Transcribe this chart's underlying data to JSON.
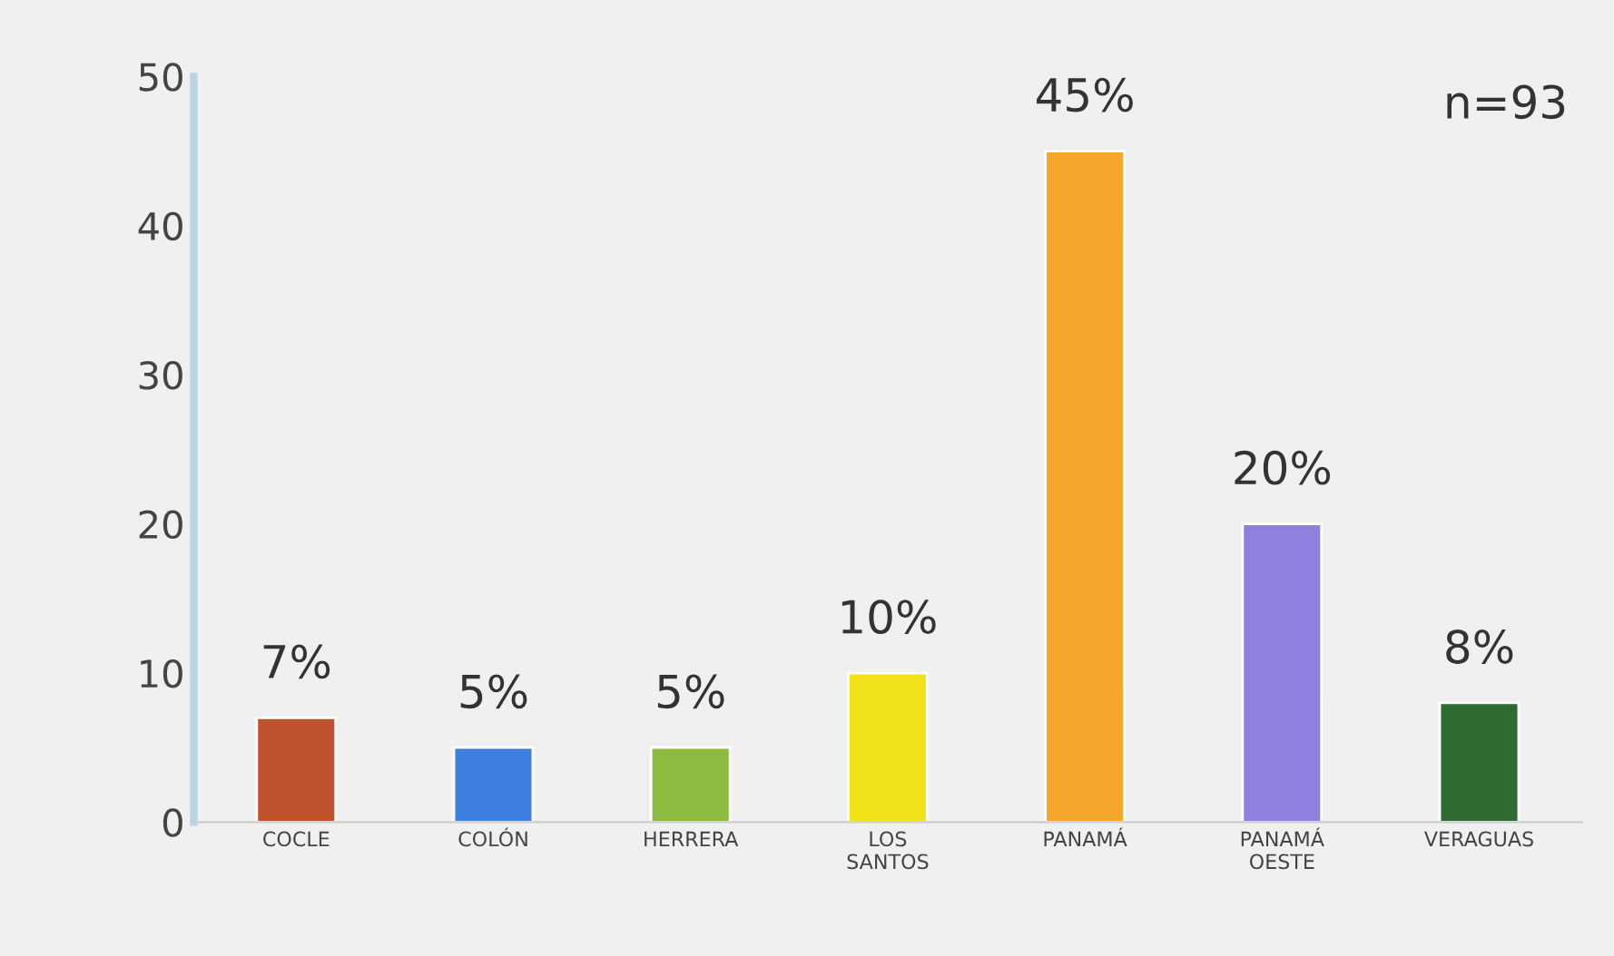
{
  "chart_data": {
    "type": "bar",
    "categories": [
      "COCLE",
      "COLÓN",
      "HERRERA",
      "LOS\nSANTOS",
      "PANAMÁ",
      "PANAMÁ\nOESTE",
      "VERAGUAS"
    ],
    "values": [
      7,
      5,
      5,
      10,
      45,
      20,
      8
    ],
    "value_labels": [
      "7%",
      "5%",
      "5%",
      "10%",
      "45%",
      "20%",
      "8%"
    ],
    "colors": [
      "#c0522e",
      "#3f7fe0",
      "#8dbb3f",
      "#f2e21a",
      "#f4a72a",
      "#8f80e0",
      "#2d6b30"
    ],
    "ylim": [
      0,
      50
    ],
    "yticks": [
      0,
      10,
      20,
      30,
      40,
      50
    ],
    "annotations": [
      "n=93"
    ],
    "grid": false,
    "legend": false
  }
}
